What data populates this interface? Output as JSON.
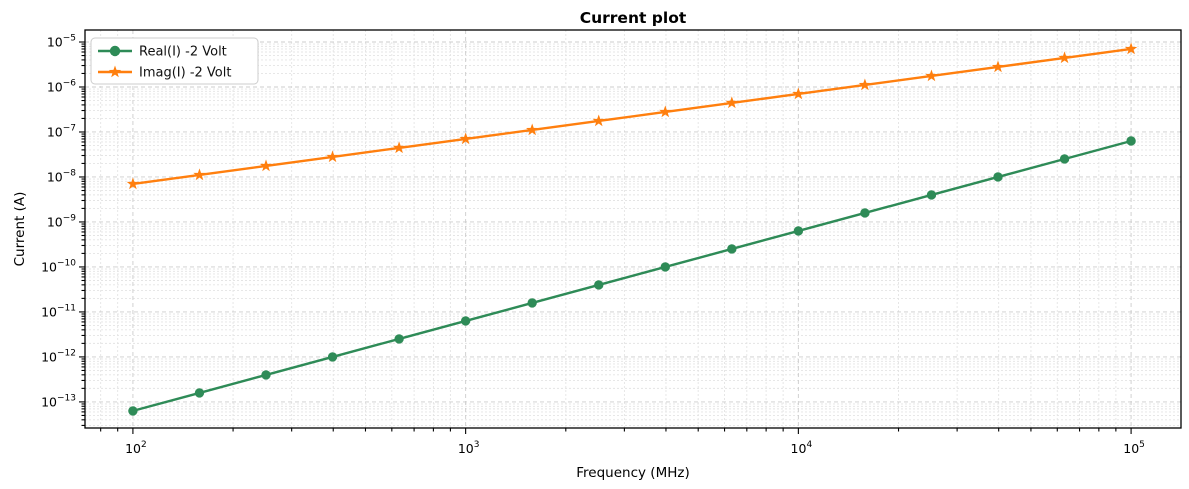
{
  "chart_data": {
    "type": "line",
    "title": "Current plot",
    "xlabel": "Frequency (MHz)",
    "ylabel": "Current (A)",
    "x_scale": "log",
    "y_scale": "log",
    "x_tick_exponents": [
      2,
      3,
      4,
      5
    ],
    "y_tick_exponents": [
      -5,
      -6,
      -7,
      -8,
      -9,
      -10,
      -11,
      -12,
      -13
    ],
    "xlim_log10": [
      1.856,
      5.15
    ],
    "ylim_log10": [
      -13.58,
      -4.733
    ],
    "grid": {
      "which": "both",
      "style": "dashed",
      "major_color": "#cccccc",
      "minor_color": "#e4e4e4"
    },
    "legend": {
      "position": "upper-left"
    },
    "x": [
      100,
      158.5,
      251.2,
      398.1,
      631.0,
      1000,
      1584.9,
      2511.9,
      3981.1,
      6309.6,
      10000,
      15848.9,
      25118.9,
      39810.7,
      63095.7,
      100000
    ],
    "series": [
      {
        "name": "Real(I) -2 Volt",
        "color": "#2e8b57",
        "marker": "circle",
        "values": [
          6.31e-14,
          1.585e-13,
          3.981e-13,
          1e-12,
          2.512e-12,
          6.31e-12,
          1.585e-11,
          3.981e-11,
          1e-10,
          2.512e-10,
          6.31e-10,
          1.585e-09,
          3.981e-09,
          1e-08,
          2.512e-08,
          6.31e-08
        ]
      },
      {
        "name": "Imag(I) -2 Volt",
        "color": "#ff7f0e",
        "marker": "star",
        "values": [
          7e-09,
          1.11e-08,
          1.76e-08,
          2.79e-08,
          4.43e-08,
          7e-08,
          1.11e-07,
          1.76e-07,
          2.79e-07,
          4.43e-07,
          7e-07,
          1.11e-06,
          1.76e-06,
          2.79e-06,
          4.43e-06,
          7e-06
        ]
      }
    ]
  }
}
